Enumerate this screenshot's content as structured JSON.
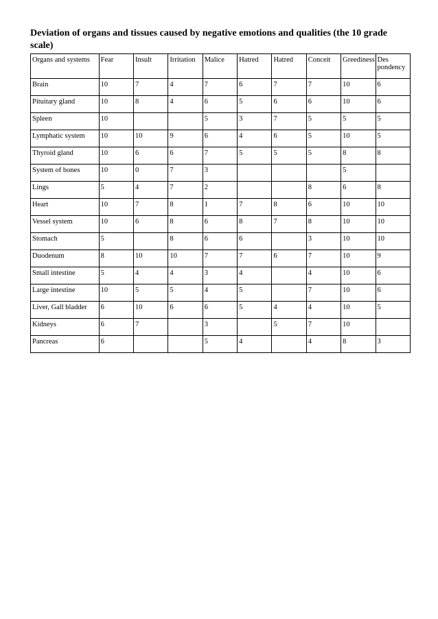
{
  "title": "Deviation of organs and tissues caused by negative emotions and qualities (the 10 grade scale)",
  "columns": [
    "Organs and systems",
    "Fear",
    "Insult",
    "Irritation",
    "Malice",
    "Hatred",
    "Hatred",
    "Conceit",
    "Greediness",
    "Des pondency"
  ],
  "rows": [
    [
      "Brain",
      "10",
      "7",
      "4",
      "7",
      "6",
      "7",
      "7",
      "10",
      "6"
    ],
    [
      "Pituitary gland",
      "10",
      "8",
      "4",
      "6",
      "5",
      "6",
      "6",
      "10",
      "6"
    ],
    [
      "Spleen",
      "10",
      "",
      "",
      "5",
      "3",
      "7",
      "5",
      "5",
      "5"
    ],
    [
      "Lymphatic system",
      "10",
      "10",
      "9",
      "6",
      "4",
      "6",
      "5",
      "10",
      "5"
    ],
    [
      "Thyroid gland",
      "10",
      "6",
      "6",
      "7",
      "5",
      "5",
      "5",
      "8",
      "8"
    ],
    [
      "System of bones",
      "10",
      "0",
      "7",
      "3",
      "",
      "",
      "",
      "5",
      ""
    ],
    [
      "Lings",
      "5",
      "4",
      "7",
      "2",
      "",
      "",
      "8",
      "6",
      "8"
    ],
    [
      "Heart",
      "10",
      "7",
      "8",
      "1",
      "7",
      "8",
      "6",
      "10",
      "10"
    ],
    [
      "Vessel system",
      "10",
      "6",
      "8",
      "6",
      "8",
      "7",
      "8",
      "10",
      "10"
    ],
    [
      "Stomach",
      "5",
      "",
      "8",
      "6",
      "6",
      "",
      "3",
      "10",
      "10"
    ],
    [
      "Duodenum",
      "8",
      "10",
      "10",
      "7",
      "7",
      "6",
      "7",
      "10",
      "9"
    ],
    [
      "Small intestine",
      "5",
      "4",
      "4",
      "3",
      "4",
      "",
      "4",
      "10",
      "6"
    ],
    [
      "Large intestine",
      "10",
      "5",
      "5",
      "4",
      "5",
      "",
      "7",
      "10",
      "6"
    ],
    [
      "Liver, Gall bladder",
      "6",
      "10",
      "6",
      "6",
      "5",
      "4",
      "4",
      "10",
      "5"
    ],
    [
      "Kidneys",
      "6",
      "7",
      "",
      "3",
      "",
      "5",
      "7",
      "10",
      ""
    ],
    [
      "Pancreas",
      "6",
      "",
      "",
      "5",
      "4",
      "",
      "4",
      "8",
      "3"
    ]
  ]
}
